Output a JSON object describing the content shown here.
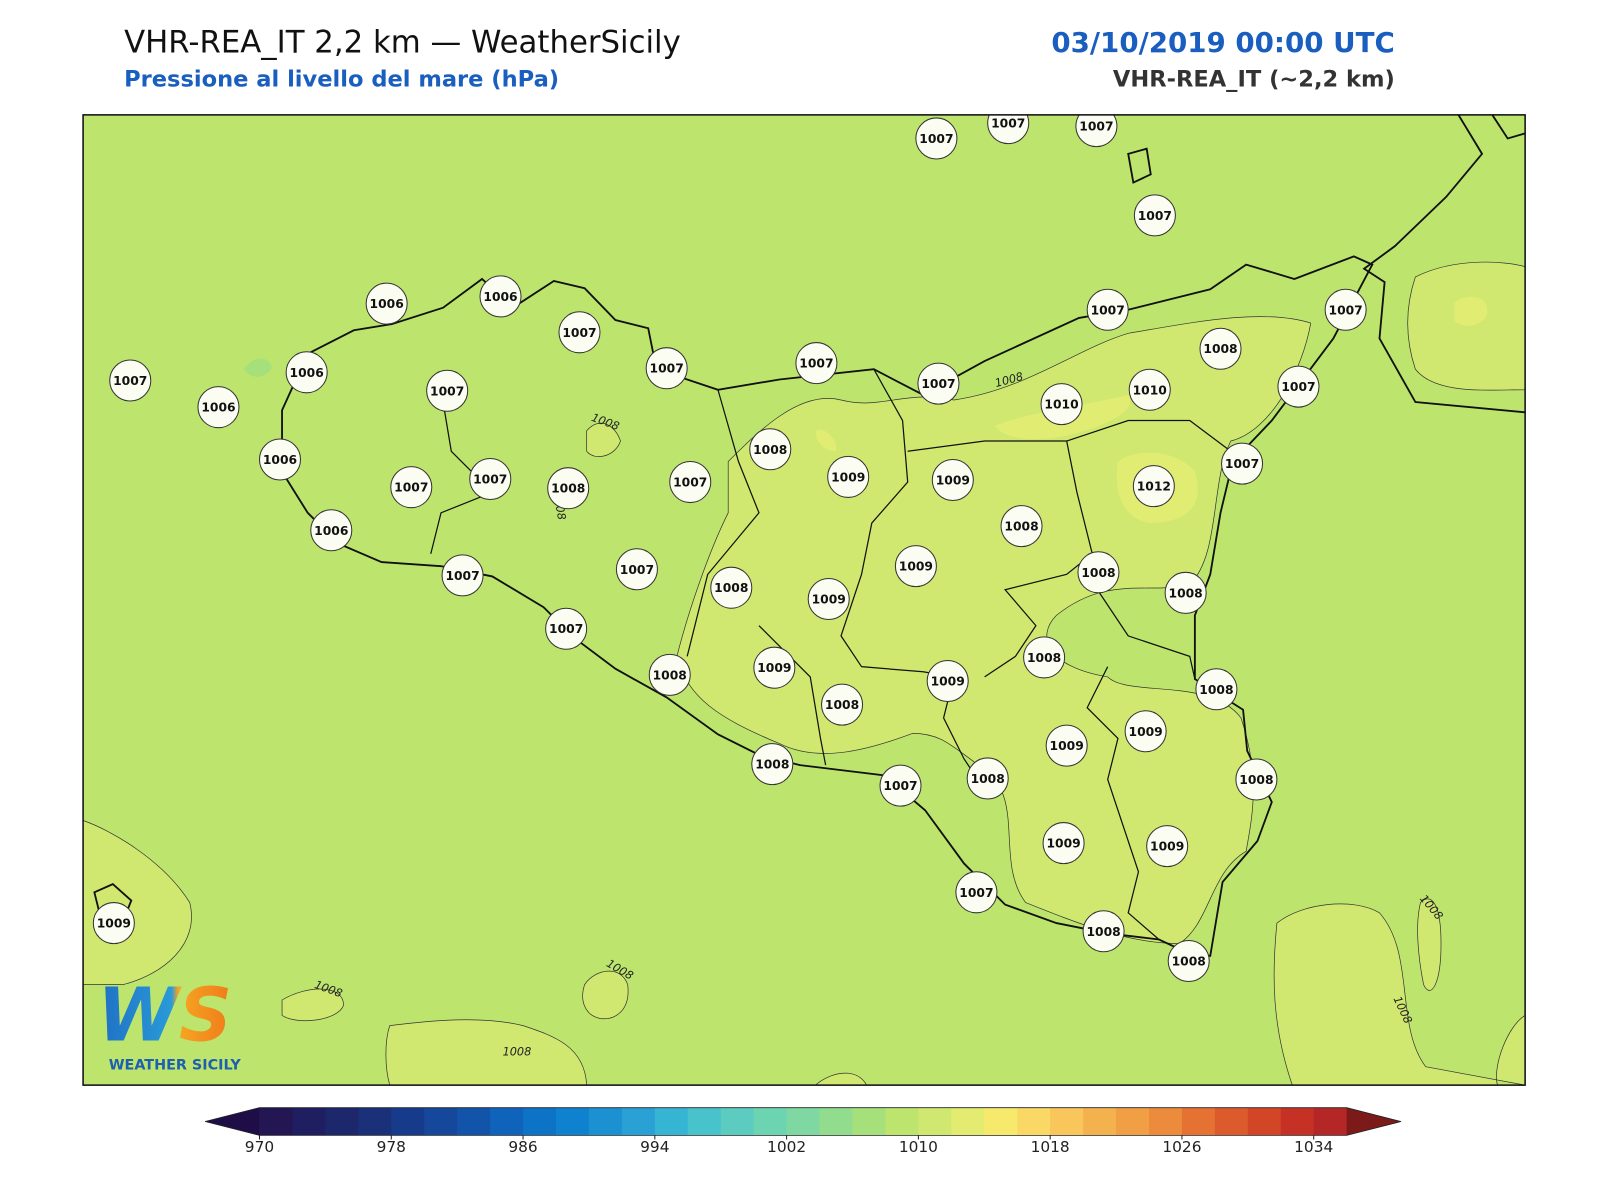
{
  "header": {
    "title": "VHR-REA_IT 2,2 km — WeatherSicily",
    "subtitle": "Pressione al livello del mare (hPa)",
    "date": "03/10/2019 00:00 UTC",
    "model": "VHR-REA_IT (~2,2 km)"
  },
  "stations": [
    1007,
    1007,
    1007,
    1007,
    1006,
    1006,
    1007,
    1007,
    1006,
    1007,
    1006,
    1007,
    1007,
    1007,
    1008,
    1007,
    1007,
    1010,
    1010,
    1007,
    1006,
    1007,
    1007,
    1008,
    1007,
    1008,
    1009,
    1009,
    1012,
    1007,
    1006,
    1008,
    1007,
    1007,
    1008,
    1009,
    1009,
    1008,
    1008,
    1007,
    1008,
    1008,
    1009,
    1009,
    1008,
    1008,
    1009,
    1009,
    1008,
    1007,
    1008,
    1008,
    1009,
    1009,
    1007,
    1009,
    1008,
    1008
  ],
  "contour_labels": [
    "1008",
    "08",
    "1008",
    "1008",
    "1008",
    "1008",
    "1008",
    "1008"
  ],
  "colorbar": {
    "range": [
      970,
      1036
    ],
    "ticks": [
      970,
      978,
      986,
      994,
      1002,
      1010,
      1018,
      1026,
      1034
    ],
    "colors": [
      "#231652",
      "#1f1e60",
      "#1d276c",
      "#1a3079",
      "#163b8a",
      "#15479b",
      "#1254aa",
      "#0f63ba",
      "#0c73c6",
      "#0f82cf",
      "#1c91d2",
      "#2aa1d5",
      "#35b5d3",
      "#48c2cb",
      "#5ccbc0",
      "#6dd4b2",
      "#7fd8a1",
      "#91dc8d",
      "#a6e07a",
      "#bde56e",
      "#d0e86f",
      "#e3ec70",
      "#f6e96b",
      "#fad866",
      "#f8c65b",
      "#f4b24f",
      "#f09f45",
      "#ec8b3c",
      "#e57233",
      "#dd5a2c",
      "#d24527",
      "#c63125",
      "#b52727"
    ],
    "under_color": "#1e0d47",
    "over_color": "#7c1a1a"
  },
  "logo": {
    "mark": "WS",
    "text": "WEATHER SICILY"
  }
}
